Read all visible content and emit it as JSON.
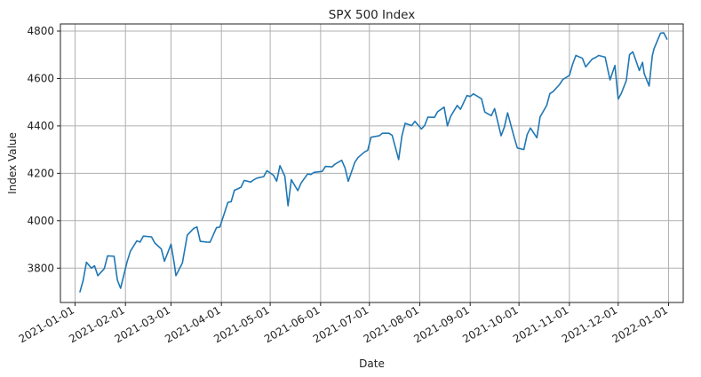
{
  "chart_data": {
    "type": "line",
    "title": "SPX 500 Index",
    "xlabel": "Date",
    "ylabel": "Index Value",
    "xlim": [
      "2020-12-23",
      "2022-01-10"
    ],
    "ylim": [
      3655,
      4830
    ],
    "grid": true,
    "x_ticks": [
      "2021-01-01",
      "2021-02-01",
      "2021-03-01",
      "2021-04-01",
      "2021-05-01",
      "2021-06-01",
      "2021-07-01",
      "2021-08-01",
      "2021-09-01",
      "2021-10-01",
      "2021-11-01",
      "2021-12-01",
      "2022-01-01"
    ],
    "y_ticks": [
      3800,
      4000,
      4200,
      4400,
      4600,
      4800
    ],
    "colors": {
      "line": "#1f77b4"
    },
    "series": [
      {
        "x": [
          "2021-01-04",
          "2021-01-06",
          "2021-01-08",
          "2021-01-11",
          "2021-01-13",
          "2021-01-15",
          "2021-01-19",
          "2021-01-21",
          "2021-01-25",
          "2021-01-27",
          "2021-01-29",
          "2021-02-02",
          "2021-02-04",
          "2021-02-08",
          "2021-02-10",
          "2021-02-12",
          "2021-02-17",
          "2021-02-19",
          "2021-02-23",
          "2021-02-25",
          "2021-03-01",
          "2021-03-03",
          "2021-03-04",
          "2021-03-08",
          "2021-03-11",
          "2021-03-15",
          "2021-03-17",
          "2021-03-19",
          "2021-03-23",
          "2021-03-25",
          "2021-03-29",
          "2021-03-31",
          "2021-04-05",
          "2021-04-07",
          "2021-04-09",
          "2021-04-13",
          "2021-04-15",
          "2021-04-19",
          "2021-04-21",
          "2021-04-23",
          "2021-04-27",
          "2021-04-29",
          "2021-05-03",
          "2021-05-05",
          "2021-05-07",
          "2021-05-10",
          "2021-05-12",
          "2021-05-14",
          "2021-05-18",
          "2021-05-20",
          "2021-05-24",
          "2021-05-26",
          "2021-05-28",
          "2021-06-02",
          "2021-06-04",
          "2021-06-08",
          "2021-06-10",
          "2021-06-14",
          "2021-06-16",
          "2021-06-18",
          "2021-06-22",
          "2021-06-24",
          "2021-06-28",
          "2021-06-30",
          "2021-07-02",
          "2021-07-07",
          "2021-07-09",
          "2021-07-13",
          "2021-07-15",
          "2021-07-19",
          "2021-07-21",
          "2021-07-23",
          "2021-07-27",
          "2021-07-29",
          "2021-08-02",
          "2021-08-04",
          "2021-08-06",
          "2021-08-10",
          "2021-08-12",
          "2021-08-16",
          "2021-08-18",
          "2021-08-20",
          "2021-08-24",
          "2021-08-26",
          "2021-08-30",
          "2021-09-01",
          "2021-09-03",
          "2021-09-08",
          "2021-09-10",
          "2021-09-14",
          "2021-09-16",
          "2021-09-20",
          "2021-09-22",
          "2021-09-24",
          "2021-09-28",
          "2021-09-30",
          "2021-10-04",
          "2021-10-06",
          "2021-10-08",
          "2021-10-12",
          "2021-10-14",
          "2021-10-18",
          "2021-10-20",
          "2021-10-22",
          "2021-10-26",
          "2021-10-28",
          "2021-11-01",
          "2021-11-03",
          "2021-11-05",
          "2021-11-09",
          "2021-11-11",
          "2021-11-15",
          "2021-11-17",
          "2021-11-19",
          "2021-11-23",
          "2021-11-26",
          "2021-11-29",
          "2021-12-01",
          "2021-12-03",
          "2021-12-06",
          "2021-12-08",
          "2021-12-10",
          "2021-12-14",
          "2021-12-16",
          "2021-12-17",
          "2021-12-20",
          "2021-12-22",
          "2021-12-23",
          "2021-12-27",
          "2021-12-29",
          "2021-12-31"
        ],
        "values": [
          3700,
          3748,
          3825,
          3800,
          3810,
          3768,
          3798,
          3852,
          3850,
          3750,
          3715,
          3826,
          3871,
          3915,
          3910,
          3935,
          3932,
          3906,
          3881,
          3829,
          3901,
          3820,
          3768,
          3822,
          3939,
          3968,
          3974,
          3913,
          3910,
          3909,
          3971,
          3973,
          4077,
          4080,
          4128,
          4141,
          4170,
          4163,
          4173,
          4180,
          4186,
          4211,
          4192,
          4167,
          4232,
          4188,
          4063,
          4173,
          4127,
          4159,
          4197,
          4195,
          4204,
          4208,
          4229,
          4227,
          4239,
          4255,
          4223,
          4166,
          4246,
          4266,
          4290,
          4297,
          4352,
          4358,
          4369,
          4369,
          4360,
          4258,
          4358,
          4411,
          4401,
          4419,
          4387,
          4402,
          4437,
          4436,
          4460,
          4479,
          4400,
          4441,
          4486,
          4470,
          4528,
          4524,
          4535,
          4514,
          4458,
          4443,
          4473,
          4358,
          4395,
          4455,
          4352,
          4307,
          4300,
          4363,
          4391,
          4350,
          4438,
          4486,
          4536,
          4545,
          4575,
          4596,
          4613,
          4660,
          4697,
          4685,
          4649,
          4682,
          4688,
          4697,
          4690,
          4594,
          4655,
          4513,
          4538,
          4591,
          4701,
          4712,
          4634,
          4668,
          4620,
          4568,
          4696,
          4725,
          4791,
          4793,
          4766
        ]
      }
    ]
  }
}
